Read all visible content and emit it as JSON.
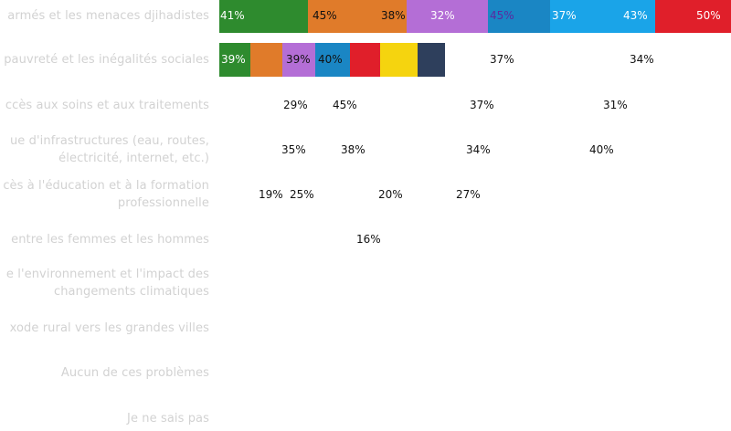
{
  "chart_data": {
    "type": "bar",
    "orientation": "horizontal",
    "categories": [
      "armés et les menaces djihadistes",
      "pauvreté et les inégalités sociales",
      "ccès aux soins et aux traitements",
      "ue d'infrastructures (eau, routes, électricité, internet, etc.)",
      "cès à l'éducation et à la formation professionnelle",
      "entre les femmes et les hommes",
      "e l'environnement et l'impact des changements climatiques",
      "xode rural vers les grandes villes",
      "Aucun de ces problèmes",
      "Je ne sais pas"
    ],
    "category_lines": [
      [
        "armés et les menaces djihadistes"
      ],
      [
        "pauvreté et les inégalités sociales"
      ],
      [
        "ccès aux soins et aux traitements"
      ],
      [
        "ue d'infrastructures (eau, routes,",
        "électricité, internet, etc.)"
      ],
      [
        "cès à l'éducation et à la formation",
        "professionnelle"
      ],
      [
        "entre les femmes et les hommes"
      ],
      [
        "e l'environnement et l'impact des",
        "changements climatiques"
      ],
      [
        "xode rural vers les grandes villes"
      ],
      [
        "Aucun de ces problèmes"
      ],
      [
        "Je ne sais pas"
      ]
    ],
    "rows": [
      {
        "segments": [
          {
            "label": "41%",
            "color": "#2e8b2e",
            "text_color": "#ffffff"
          },
          {
            "label": "45%",
            "color": "#e07b2a",
            "text_color": "#111111"
          },
          {
            "label": "38%",
            "color": "#e07b2a",
            "text_color": "#111111"
          },
          {
            "label": "32%",
            "color": "#b46ed6",
            "text_color": "#ffffff"
          },
          {
            "label": "45%",
            "color": "#1a86c4",
            "text_color": "#5a2aa0"
          },
          {
            "label": "37%",
            "color": "#1aa4e8",
            "text_color": "#ffffff"
          },
          {
            "label": "43%",
            "color": "#1aa4e8",
            "text_color": "#ffffff"
          },
          {
            "label": "50%",
            "color": "#e01f2a",
            "text_color": "#ffffff"
          }
        ],
        "free_labels": []
      },
      {
        "segments": [
          {
            "label": "39%",
            "color": "#2e8b2e",
            "text_color": "#ffffff"
          },
          {
            "label": "",
            "color": "#e07b2a",
            "text_color": "#111111"
          },
          {
            "label": "39%",
            "color": "#b46ed6",
            "text_color": "#111111"
          },
          {
            "label": "40%",
            "color": "#1a86c4",
            "text_color": "#111111"
          },
          {
            "label": "",
            "color": "#e01f2a",
            "text_color": "#111111"
          },
          {
            "label": "",
            "color": "#f5d40f",
            "text_color": "#111111"
          },
          {
            "label": "",
            "color": "#2e3f5c",
            "text_color": "#111111"
          }
        ],
        "free_labels": [
          "37%",
          "34%"
        ]
      },
      {
        "segments": [],
        "free_labels": [
          "29%",
          "45%",
          "37%",
          "31%"
        ]
      },
      {
        "segments": [],
        "free_labels": [
          "35%",
          "38%",
          "34%",
          "40%"
        ]
      },
      {
        "segments": [],
        "free_labels": [
          "19%",
          "25%",
          "20%",
          "27%"
        ]
      },
      {
        "segments": [],
        "free_labels": [
          "16%"
        ]
      },
      {
        "segments": [],
        "free_labels": []
      },
      {
        "segments": [],
        "free_labels": []
      },
      {
        "segments": [],
        "free_labels": []
      },
      {
        "segments": [],
        "free_labels": []
      }
    ],
    "xlabel": "",
    "ylabel": "",
    "grid": false,
    "legend": "none"
  }
}
